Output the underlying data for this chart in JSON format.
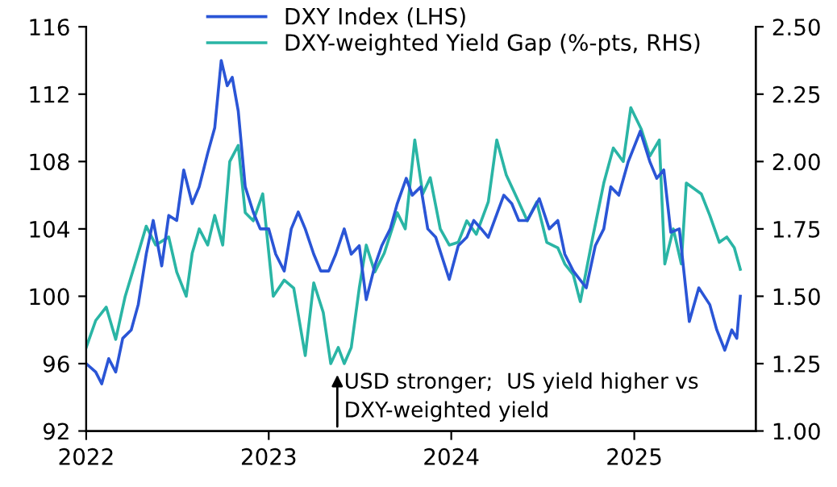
{
  "chart_data": {
    "type": "line",
    "xlim": [
      "2022-01-01",
      "2025-09-01"
    ],
    "xticks": [
      {
        "value": "2022-01-01",
        "label": "2022"
      },
      {
        "value": "2023-01-01",
        "label": "2023"
      },
      {
        "value": "2024-01-01",
        "label": "2024"
      },
      {
        "value": "2025-01-01",
        "label": "2025"
      }
    ],
    "ylim": [
      92,
      116
    ],
    "yticks": [
      92,
      96,
      100,
      104,
      108,
      112,
      116
    ],
    "y2lim": [
      1.0,
      2.5
    ],
    "y2ticks": [
      {
        "value": 1.0,
        "label": "1.00"
      },
      {
        "value": 1.25,
        "label": "1.25"
      },
      {
        "value": 1.5,
        "label": "1.50"
      },
      {
        "value": 1.75,
        "label": "1.75"
      },
      {
        "value": 2.0,
        "label": "2.00"
      },
      {
        "value": 2.25,
        "label": "2.25"
      },
      {
        "value": 2.5,
        "label": "2.50"
      }
    ],
    "grid": false,
    "legend": "top",
    "marker": "none",
    "line_style": "solid",
    "series": [
      {
        "name": "DXY Index (LHS)",
        "color": "#2a55d6",
        "x": [
          "2022-01-01",
          "2022-01-20",
          "2022-02-01",
          "2022-02-15",
          "2022-03-01",
          "2022-03-15",
          "2022-04-01",
          "2022-04-15",
          "2022-05-01",
          "2022-05-15",
          "2022-06-01",
          "2022-06-15",
          "2022-07-01",
          "2022-07-15",
          "2022-08-01",
          "2022-08-15",
          "2022-09-01",
          "2022-09-15",
          "2022-09-28",
          "2022-10-10",
          "2022-10-20",
          "2022-11-01",
          "2022-11-15",
          "2022-12-01",
          "2022-12-15",
          "2023-01-01",
          "2023-01-15",
          "2023-02-01",
          "2023-02-15",
          "2023-03-01",
          "2023-03-15",
          "2023-04-01",
          "2023-04-15",
          "2023-05-01",
          "2023-05-15",
          "2023-06-01",
          "2023-06-15",
          "2023-07-01",
          "2023-07-15",
          "2023-08-01",
          "2023-08-15",
          "2023-09-01",
          "2023-09-15",
          "2023-10-03",
          "2023-10-15",
          "2023-11-01",
          "2023-11-15",
          "2023-12-01",
          "2023-12-28",
          "2024-01-15",
          "2024-02-01",
          "2024-02-15",
          "2024-03-01",
          "2024-03-15",
          "2024-04-15",
          "2024-05-01",
          "2024-05-15",
          "2024-06-01",
          "2024-06-25",
          "2024-07-15",
          "2024-08-01",
          "2024-08-15",
          "2024-09-01",
          "2024-09-27",
          "2024-10-15",
          "2024-11-01",
          "2024-11-15",
          "2024-12-01",
          "2024-12-20",
          "2025-01-13",
          "2025-02-01",
          "2025-02-15",
          "2025-03-01",
          "2025-03-15",
          "2025-04-01",
          "2025-04-21",
          "2025-05-10",
          "2025-06-01",
          "2025-06-15",
          "2025-07-01",
          "2025-07-15",
          "2025-07-25",
          "2025-08-01"
        ],
        "values": [
          96.0,
          95.5,
          94.8,
          96.3,
          95.5,
          97.5,
          98.0,
          99.5,
          102.5,
          104.5,
          101.8,
          104.8,
          104.5,
          107.5,
          105.5,
          106.5,
          108.5,
          110,
          114.0,
          112.5,
          113,
          111,
          106.5,
          105,
          104,
          104,
          102.5,
          101.5,
          104,
          105,
          104,
          102.5,
          101.5,
          101.5,
          102.5,
          104,
          102.5,
          103,
          99.8,
          101.8,
          103,
          104,
          105.5,
          107,
          106,
          106.5,
          104,
          103.5,
          101.0,
          103,
          103.5,
          104.5,
          104,
          103.5,
          106,
          105.5,
          104.5,
          104.5,
          105.8,
          104,
          104.5,
          102.5,
          101.5,
          100.5,
          103,
          104,
          106.5,
          106,
          108,
          109.8,
          108,
          107,
          107.5,
          103.8,
          104,
          98.5,
          100.5,
          99.5,
          98,
          96.8,
          98,
          97.5,
          100
        ]
      },
      {
        "name": "DXY-weighted Yield Gap (%-pts, RHS)",
        "color": "#2ab5a5",
        "axis": "y2",
        "x": [
          "2022-01-01",
          "2022-01-20",
          "2022-02-10",
          "2022-03-01",
          "2022-03-20",
          "2022-04-15",
          "2022-05-01",
          "2022-05-20",
          "2022-06-15",
          "2022-07-01",
          "2022-07-20",
          "2022-08-01",
          "2022-08-15",
          "2022-09-01",
          "2022-09-15",
          "2022-10-01",
          "2022-10-15",
          "2022-11-01",
          "2022-11-15",
          "2022-12-01",
          "2022-12-20",
          "2023-01-10",
          "2023-02-01",
          "2023-02-20",
          "2023-03-15",
          "2023-04-01",
          "2023-04-20",
          "2023-05-05",
          "2023-05-20",
          "2023-06-01",
          "2023-06-15",
          "2023-07-01",
          "2023-07-15",
          "2023-08-01",
          "2023-08-20",
          "2023-09-15",
          "2023-10-01",
          "2023-10-20",
          "2023-11-05",
          "2023-11-20",
          "2023-12-10",
          "2023-12-28",
          "2024-01-15",
          "2024-02-01",
          "2024-02-20",
          "2024-03-15",
          "2024-04-01",
          "2024-04-20",
          "2024-05-15",
          "2024-06-01",
          "2024-06-20",
          "2024-07-10",
          "2024-08-01",
          "2024-08-15",
          "2024-09-01",
          "2024-09-15",
          "2024-10-10",
          "2024-11-01",
          "2024-11-20",
          "2024-12-10",
          "2024-12-25",
          "2025-01-15",
          "2025-02-01",
          "2025-02-20",
          "2025-03-03",
          "2025-03-20",
          "2025-04-05",
          "2025-04-15",
          "2025-05-15",
          "2025-06-01",
          "2025-06-20",
          "2025-07-05",
          "2025-07-20",
          "2025-08-01"
        ],
        "values": [
          1.31,
          1.41,
          1.46,
          1.34,
          1.5,
          1.66,
          1.76,
          1.69,
          1.72,
          1.59,
          1.5,
          1.66,
          1.75,
          1.69,
          1.8,
          1.69,
          2.0,
          2.06,
          1.81,
          1.78,
          1.88,
          1.5,
          1.56,
          1.53,
          1.28,
          1.55,
          1.44,
          1.25,
          1.31,
          1.25,
          1.31,
          1.53,
          1.69,
          1.59,
          1.66,
          1.81,
          1.75,
          2.08,
          1.88,
          1.94,
          1.75,
          1.69,
          1.7,
          1.78,
          1.73,
          1.85,
          2.08,
          1.95,
          1.85,
          1.78,
          1.85,
          1.7,
          1.68,
          1.62,
          1.58,
          1.48,
          1.72,
          1.92,
          2.05,
          2.0,
          2.2,
          2.12,
          2.02,
          2.08,
          1.62,
          1.75,
          1.62,
          1.92,
          1.88,
          1.8,
          1.7,
          1.72,
          1.68,
          1.6
        ]
      }
    ],
    "annotations": [
      "USD stronger;  US yield higher vs\nDXY-weighted yield"
    ]
  }
}
